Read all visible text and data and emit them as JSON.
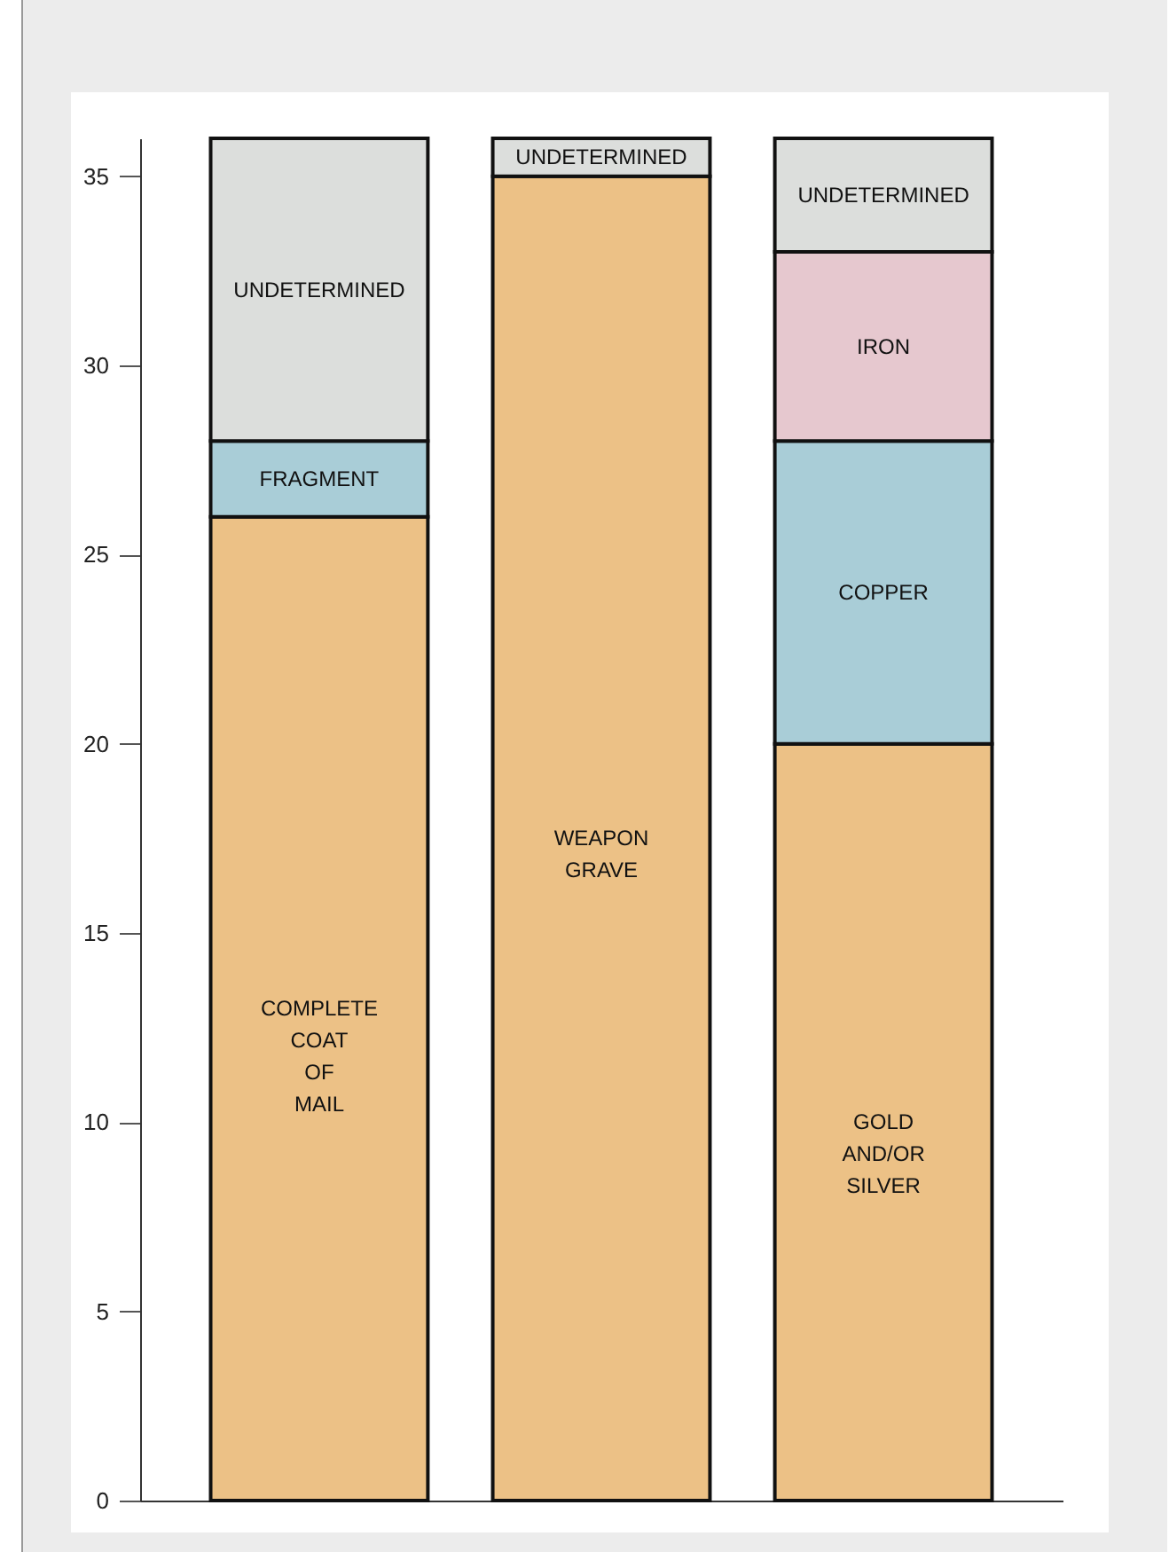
{
  "chart_data": {
    "type": "bar",
    "stacked": true,
    "categories": [
      null,
      null,
      null
    ],
    "series": [
      {
        "name": "COMPLETE COAT OF MAIL",
        "color": "#ecc186",
        "values": [
          26,
          null,
          null
        ]
      },
      {
        "name": "WEAPON GRAVE",
        "color": "#ecc186",
        "values": [
          null,
          35,
          null
        ]
      },
      {
        "name": "GOLD AND/OR SILVER",
        "color": "#ecc186",
        "values": [
          null,
          null,
          20
        ]
      },
      {
        "name": "FRAGMENT",
        "color": "#a9cdd7",
        "values": [
          2,
          null,
          null
        ]
      },
      {
        "name": "COPPER",
        "color": "#a9cdd7",
        "values": [
          null,
          null,
          8
        ]
      },
      {
        "name": "IRON",
        "color": "#e6c8cf",
        "values": [
          null,
          null,
          5
        ]
      },
      {
        "name": "UNDETERMINED",
        "color": "#dcdedc",
        "values": [
          8,
          1,
          3
        ]
      }
    ],
    "ylim": [
      0,
      36
    ],
    "yticks": [
      0,
      5,
      10,
      15,
      20,
      25,
      30,
      35
    ],
    "tick_labels": "y",
    "grid": false,
    "legend": false
  }
}
